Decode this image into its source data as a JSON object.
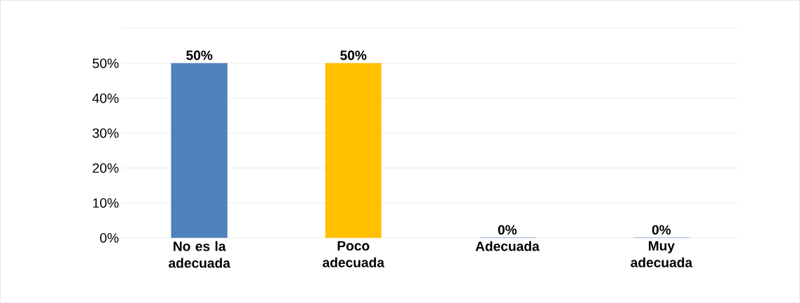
{
  "chart_data": {
    "type": "bar",
    "categories": [
      "No es la adecuada",
      "Poco adecuada",
      "Adecuada",
      "Muy adecuada"
    ],
    "values": [
      50,
      50,
      0,
      0
    ],
    "value_labels": [
      "50%",
      "50%",
      "0%",
      "0%"
    ],
    "colors": [
      "#4f81bd",
      "#ffc000",
      "#4f81bd",
      "#4f81bd"
    ],
    "ylim": [
      0,
      60
    ],
    "yticks": [
      {
        "value": 0,
        "label": "0%"
      },
      {
        "value": 10,
        "label": "10%"
      },
      {
        "value": 20,
        "label": "20%"
      },
      {
        "value": 30,
        "label": "30%"
      },
      {
        "value": 40,
        "label": "40%"
      },
      {
        "value": 50,
        "label": "50%"
      },
      {
        "value": 60,
        "label": null
      }
    ],
    "grid": "y"
  }
}
